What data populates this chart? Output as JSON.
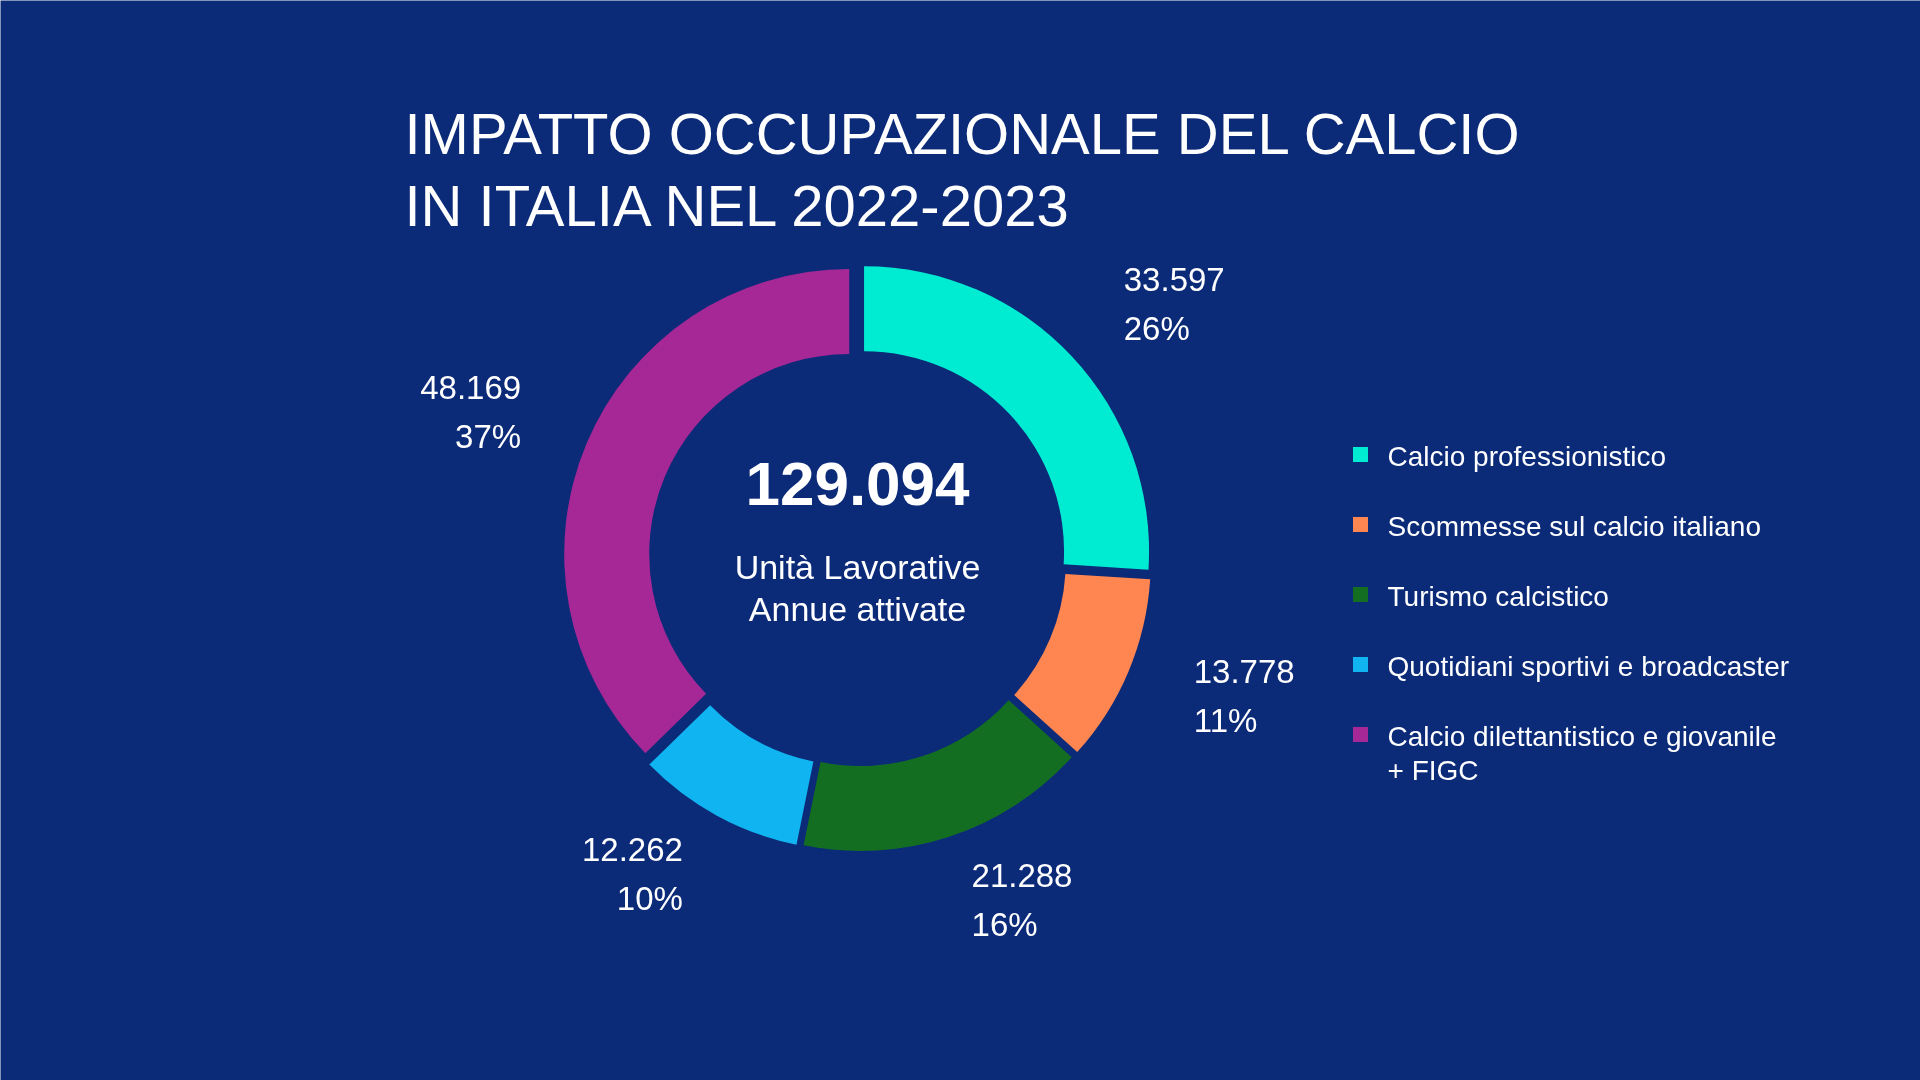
{
  "chart_data": {
    "type": "donut",
    "title": "IMPATTO OCCUPAZIONALE DEL CALCIO\nIN ITALIA NEL 2022-2023",
    "categories": [
      "Calcio professionistico",
      "Scommesse sul calcio italiano",
      "Turismo calcistico",
      "Quotidiani sportivi e broadcaster",
      "Calcio dilettantistico e giovanile + FIGC"
    ],
    "values": [
      33597,
      13778,
      21288,
      12262,
      48169
    ],
    "colors": [
      "#00ecd2",
      "#ff8650",
      "#136e22",
      "#10b4f0",
      "#a52896"
    ],
    "value_labels": [
      "33.597\n26%",
      "13.778\n11%",
      "21.288\n16%",
      "12.262\n10%",
      "48.169\n37%"
    ],
    "annotations": [
      "129.094",
      "Unità Lavorative\nAnnue attivate"
    ],
    "legend": "right"
  }
}
